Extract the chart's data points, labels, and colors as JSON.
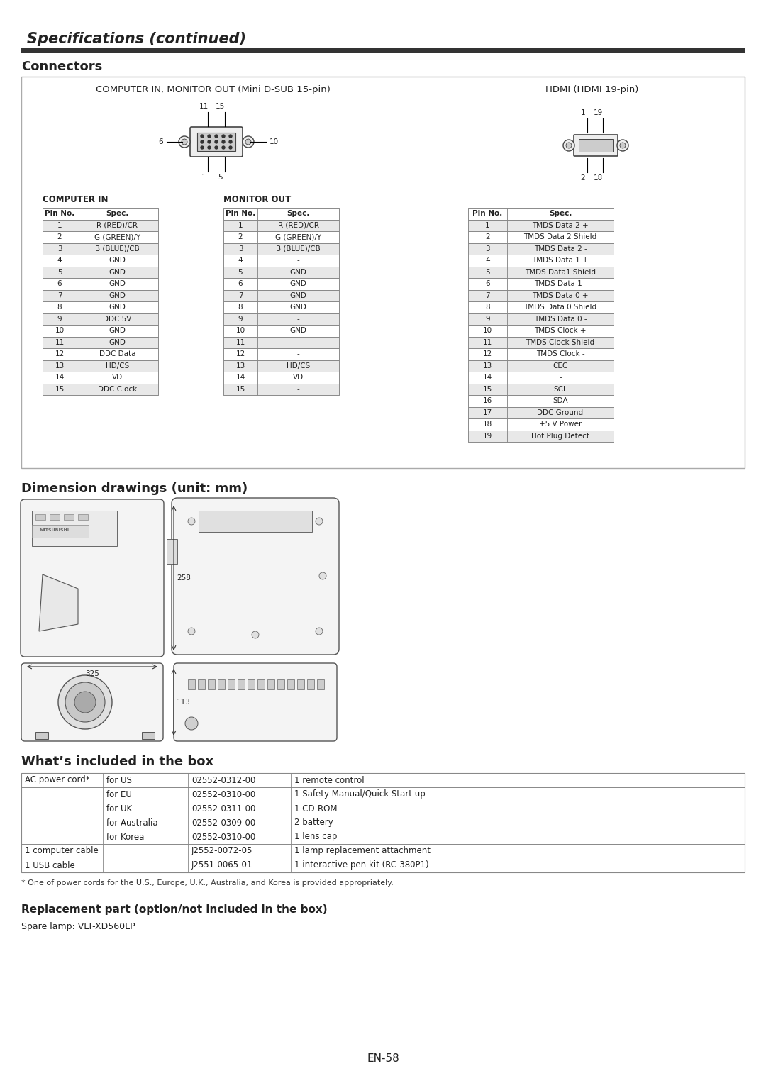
{
  "title": "Specifications (continued)",
  "bg_color": "#ffffff",
  "text_color": "#222222",
  "section_connectors": "Connectors",
  "connector_box_title_left": "COMPUTER IN, MONITOR OUT (Mini D-SUB 15-pin)",
  "connector_box_title_right": "HDMI (HDMI 19-pin)",
  "computer_in_label": "COMPUTER IN",
  "monitor_out_label": "MONITOR OUT",
  "computer_in_pins": [
    [
      "Pin No.",
      "Spec."
    ],
    [
      "1",
      "R (RED)/CR"
    ],
    [
      "2",
      "G (GREEN)/Y"
    ],
    [
      "3",
      "B (BLUE)/CB"
    ],
    [
      "4",
      "GND"
    ],
    [
      "5",
      "GND"
    ],
    [
      "6",
      "GND"
    ],
    [
      "7",
      "GND"
    ],
    [
      "8",
      "GND"
    ],
    [
      "9",
      "DDC 5V"
    ],
    [
      "10",
      "GND"
    ],
    [
      "11",
      "GND"
    ],
    [
      "12",
      "DDC Data"
    ],
    [
      "13",
      "HD/CS"
    ],
    [
      "14",
      "VD"
    ],
    [
      "15",
      "DDC Clock"
    ]
  ],
  "monitor_out_pins": [
    [
      "Pin No.",
      "Spec."
    ],
    [
      "1",
      "R (RED)/CR"
    ],
    [
      "2",
      "G (GREEN)/Y"
    ],
    [
      "3",
      "B (BLUE)/CB"
    ],
    [
      "4",
      "-"
    ],
    [
      "5",
      "GND"
    ],
    [
      "6",
      "GND"
    ],
    [
      "7",
      "GND"
    ],
    [
      "8",
      "GND"
    ],
    [
      "9",
      "-"
    ],
    [
      "10",
      "GND"
    ],
    [
      "11",
      "-"
    ],
    [
      "12",
      "-"
    ],
    [
      "13",
      "HD/CS"
    ],
    [
      "14",
      "VD"
    ],
    [
      "15",
      "-"
    ]
  ],
  "hdmi_pins": [
    [
      "Pin No.",
      "Spec."
    ],
    [
      "1",
      "TMDS Data 2 +"
    ],
    [
      "2",
      "TMDS Data 2 Shield"
    ],
    [
      "3",
      "TMDS Data 2 -"
    ],
    [
      "4",
      "TMDS Data 1 +"
    ],
    [
      "5",
      "TMDS Data1 Shield"
    ],
    [
      "6",
      "TMDS Data 1 -"
    ],
    [
      "7",
      "TMDS Data 0 +"
    ],
    [
      "8",
      "TMDS Data 0 Shield"
    ],
    [
      "9",
      "TMDS Data 0 -"
    ],
    [
      "10",
      "TMDS Clock +"
    ],
    [
      "11",
      "TMDS Clock Shield"
    ],
    [
      "12",
      "TMDS Clock -"
    ],
    [
      "13",
      "CEC"
    ],
    [
      "14",
      "-"
    ],
    [
      "15",
      "SCL"
    ],
    [
      "16",
      "SDA"
    ],
    [
      "17",
      "DDC Ground"
    ],
    [
      "18",
      "+5 V Power"
    ],
    [
      "19",
      "Hot Plug Detect"
    ]
  ],
  "section_dimension": "Dimension drawings (unit: mm)",
  "dim_325": "325",
  "dim_258": "258",
  "dim_113": "113",
  "section_box": "What’s included in the box",
  "box_items": [
    [
      "AC power cord*",
      "for US",
      "02552-0312-00",
      "1 remote control"
    ],
    [
      "",
      "for EU",
      "02552-0310-00",
      "1 Safety Manual/Quick Start up"
    ],
    [
      "",
      "for UK",
      "02552-0311-00",
      "1 CD-ROM"
    ],
    [
      "",
      "for Australia",
      "02552-0309-00",
      "2 battery"
    ],
    [
      "",
      "for Korea",
      "02552-0310-00",
      "1 lens cap"
    ],
    [
      "1 computer cable",
      "",
      "J2552-0072-05",
      "1 lamp replacement attachment"
    ],
    [
      "1 USB cable",
      "",
      "J2551-0065-01",
      "1 interactive pen kit (RC-380P1)"
    ]
  ],
  "footnote": "* One of power cords for the U.S., Europe, U.K., Australia, and Korea is provided appropriately.",
  "replacement_title": "Replacement part (option/not included in the box)",
  "replacement_text": "Spare lamp: VLT-XD560LP",
  "page_number": "EN-58",
  "row_color_alt": "#e8e8e8",
  "row_color_norm": "#ffffff",
  "header_color": "#ffffff",
  "border_color": "#888888"
}
